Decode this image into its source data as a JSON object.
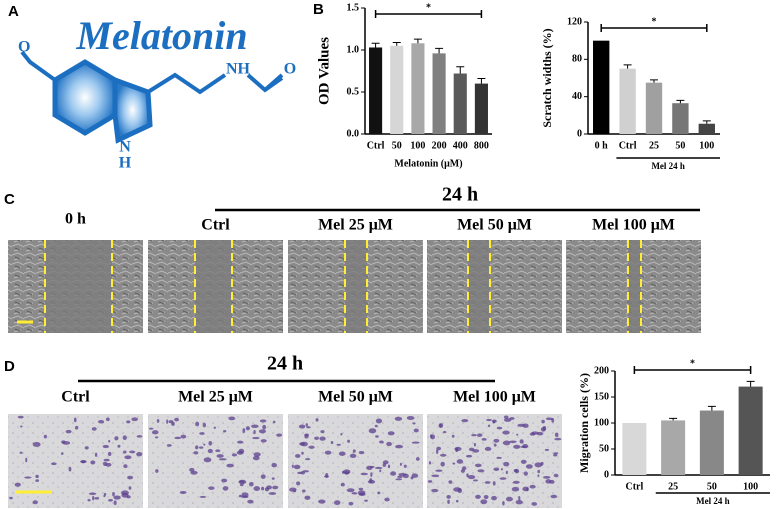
{
  "panel_labels": [
    "A",
    "B",
    "C",
    "D"
  ],
  "molecule": {
    "name": "Melatonin",
    "atoms": [
      "O",
      "NH",
      "O",
      "N",
      "H"
    ]
  },
  "chart_data": [
    {
      "type": "bar",
      "ylabel": "OD Values",
      "xlabel": "Melatonin (μM)",
      "categories": [
        "Ctrl",
        "50",
        "100",
        "200",
        "400",
        "800"
      ],
      "values": [
        1.03,
        1.05,
        1.08,
        0.96,
        0.72,
        0.6
      ],
      "errors": [
        0.05,
        0.04,
        0.05,
        0.06,
        0.08,
        0.06
      ],
      "colors": [
        "#111111",
        "#d6d6d6",
        "#a8a8a8",
        "#808080",
        "#5a5a5a",
        "#333333"
      ],
      "ylim": [
        0,
        1.5
      ],
      "yticks": [
        {
          "value": 0,
          "label": "0.0"
        },
        {
          "value": 0.5,
          "label": "0.5"
        },
        {
          "value": 1,
          "label": "1.0"
        },
        {
          "value": 1.5,
          "label": "1.5"
        }
      ],
      "significance": "*"
    },
    {
      "type": "bar",
      "ylabel": "Scratch widths (%)",
      "group_label": "Mel 24 h",
      "categories": [
        "0 h",
        "Ctrl",
        "25",
        "50",
        "100"
      ],
      "values": [
        100,
        70,
        55,
        33,
        11
      ],
      "errors": [
        0,
        4,
        3,
        3,
        3
      ],
      "colors": [
        "#000000",
        "#d0d0d0",
        "#a0a0a0",
        "#777777",
        "#444444"
      ],
      "ylim": [
        0,
        120
      ],
      "yticks": [
        0,
        40,
        80,
        120
      ],
      "significance": "*"
    },
    {
      "type": "bar",
      "ylabel": "Migration cells (%)",
      "group_label": "Mel 24 h",
      "categories": [
        "Ctrl",
        "25",
        "50",
        "100"
      ],
      "values": [
        100,
        105,
        124,
        170
      ],
      "errors": [
        0,
        4,
        8,
        10
      ],
      "colors": [
        "#d8d8d8",
        "#a8a8a8",
        "#888888",
        "#555555"
      ],
      "ylim": [
        0,
        200
      ],
      "yticks": [
        0,
        50,
        100,
        150,
        200
      ],
      "significance": "*"
    }
  ],
  "panel_c": {
    "time_label": "24 h",
    "images": [
      "0 h",
      "Ctrl",
      "Mel 25 μM",
      "Mel 50 μM",
      "Mel 100 μM"
    ]
  },
  "panel_d": {
    "time_label": "24 h",
    "images": [
      "Ctrl",
      "Mel 25 μM",
      "Mel 50 μM",
      "Mel 100 μM"
    ]
  }
}
